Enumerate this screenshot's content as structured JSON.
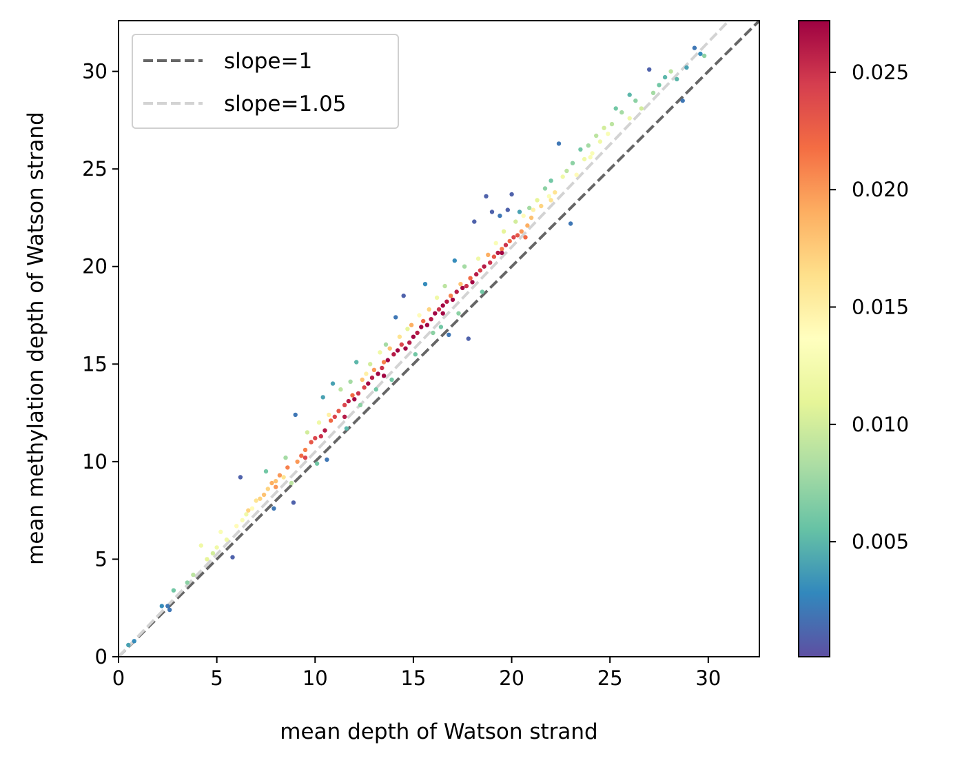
{
  "chart_data": {
    "type": "scatter",
    "title": "",
    "xlabel": "mean depth of Watson strand",
    "ylabel": "mean methylation depth of Watson strand",
    "xlim": [
      0,
      32.6
    ],
    "ylim": [
      0,
      32.6
    ],
    "xticks": [
      "0",
      "5",
      "10",
      "15",
      "20",
      "25",
      "30"
    ],
    "yticks": [
      "0",
      "5",
      "10",
      "15",
      "20",
      "25",
      "30"
    ],
    "grid": false,
    "legend_position": "top-left",
    "lines": [
      {
        "name": "slope=1",
        "slope": 1,
        "color": "#666666",
        "dash": "dashed"
      },
      {
        "name": "slope=1.05",
        "slope": 1.05,
        "color": "#d3d3d3",
        "dash": "dashed"
      }
    ],
    "colorbar": {
      "colormap": "Spectral_r",
      "range": [
        0.0001,
        0.0272
      ],
      "ticks": [
        "0.005",
        "0.010",
        "0.015",
        "0.020",
        "0.025"
      ],
      "tick_values": [
        0.005,
        0.01,
        0.015,
        0.02,
        0.025
      ]
    },
    "points": [
      [
        0.5,
        0.6,
        0.004
      ],
      [
        0.8,
        0.8,
        0.003
      ],
      [
        2.2,
        2.6,
        0.003
      ],
      [
        2.5,
        2.6,
        0.002
      ],
      [
        2.6,
        2.4,
        0.002
      ],
      [
        2.8,
        3.4,
        0.006
      ],
      [
        3.5,
        3.8,
        0.007
      ],
      [
        3.8,
        4.2,
        0.009
      ],
      [
        4.2,
        5.7,
        0.012
      ],
      [
        4.5,
        5.0,
        0.011
      ],
      [
        4.8,
        5.3,
        0.01
      ],
      [
        5.0,
        5.6,
        0.012
      ],
      [
        5.2,
        6.4,
        0.013
      ],
      [
        5.5,
        6.0,
        0.012
      ],
      [
        5.8,
        5.1,
        0.001
      ],
      [
        6.0,
        6.7,
        0.014
      ],
      [
        6.2,
        9.2,
        0.001
      ],
      [
        6.3,
        7.0,
        0.013
      ],
      [
        6.5,
        7.3,
        0.012
      ],
      [
        6.8,
        7.6,
        0.014
      ],
      [
        7.0,
        8.0,
        0.016
      ],
      [
        7.2,
        8.1,
        0.017
      ],
      [
        7.4,
        8.3,
        0.018
      ],
      [
        7.5,
        9.5,
        0.006
      ],
      [
        7.6,
        8.6,
        0.017
      ],
      [
        7.8,
        8.9,
        0.019
      ],
      [
        7.9,
        7.6,
        0.002
      ],
      [
        8.0,
        9.0,
        0.018
      ],
      [
        8.2,
        9.3,
        0.02
      ],
      [
        8.4,
        9.2,
        0.016
      ],
      [
        8.5,
        10.2,
        0.008
      ],
      [
        8.6,
        9.7,
        0.021
      ],
      [
        8.8,
        8.9,
        0.009
      ],
      [
        8.9,
        7.9,
        0.001
      ],
      [
        9.0,
        12.4,
        0.002
      ],
      [
        9.1,
        10.0,
        0.02
      ],
      [
        9.3,
        10.3,
        0.022
      ],
      [
        9.5,
        10.6,
        0.021
      ],
      [
        9.6,
        11.5,
        0.01
      ],
      [
        9.8,
        11.0,
        0.023
      ],
      [
        10.0,
        11.2,
        0.024
      ],
      [
        10.1,
        9.9,
        0.006
      ],
      [
        10.2,
        12.0,
        0.012
      ],
      [
        10.3,
        11.3,
        0.025
      ],
      [
        10.4,
        13.3,
        0.004
      ],
      [
        10.5,
        11.6,
        0.026
      ],
      [
        10.6,
        10.1,
        0.002
      ],
      [
        10.7,
        12.4,
        0.015
      ],
      [
        10.8,
        12.1,
        0.022
      ],
      [
        10.9,
        14.0,
        0.004
      ],
      [
        11.0,
        12.3,
        0.024
      ],
      [
        11.2,
        12.6,
        0.023
      ],
      [
        11.3,
        13.7,
        0.009
      ],
      [
        11.5,
        12.9,
        0.024
      ],
      [
        11.6,
        11.7,
        0.005
      ],
      [
        11.7,
        13.1,
        0.026
      ],
      [
        11.8,
        14.1,
        0.008
      ],
      [
        11.9,
        13.4,
        0.022
      ],
      [
        12.0,
        13.2,
        0.027
      ],
      [
        12.1,
        15.1,
        0.005
      ],
      [
        12.2,
        13.5,
        0.025
      ],
      [
        12.3,
        12.9,
        0.007
      ],
      [
        12.4,
        14.2,
        0.018
      ],
      [
        12.5,
        13.8,
        0.024
      ],
      [
        12.6,
        14.5,
        0.015
      ],
      [
        12.7,
        14.0,
        0.027
      ],
      [
        12.8,
        15.0,
        0.01
      ],
      [
        12.9,
        14.3,
        0.026
      ],
      [
        13.0,
        14.7,
        0.02
      ],
      [
        13.1,
        13.7,
        0.006
      ],
      [
        13.2,
        14.5,
        0.027
      ],
      [
        13.3,
        15.6,
        0.012
      ],
      [
        13.4,
        14.8,
        0.025
      ],
      [
        13.5,
        15.1,
        0.021
      ],
      [
        13.6,
        16.0,
        0.008
      ],
      [
        13.7,
        15.2,
        0.027
      ],
      [
        13.8,
        15.8,
        0.018
      ],
      [
        13.9,
        14.2,
        0.006
      ],
      [
        14.0,
        15.5,
        0.026
      ],
      [
        14.1,
        17.4,
        0.002
      ],
      [
        14.2,
        15.7,
        0.027
      ],
      [
        14.3,
        16.4,
        0.016
      ],
      [
        14.4,
        16.0,
        0.024
      ],
      [
        14.5,
        18.5,
        0.001
      ],
      [
        14.6,
        15.8,
        0.027
      ],
      [
        14.7,
        16.8,
        0.011
      ],
      [
        14.8,
        16.1,
        0.026
      ],
      [
        14.9,
        17.0,
        0.019
      ],
      [
        15.0,
        16.4,
        0.027
      ],
      [
        15.1,
        15.5,
        0.006
      ],
      [
        15.2,
        16.6,
        0.026
      ],
      [
        15.3,
        17.5,
        0.014
      ],
      [
        15.4,
        16.9,
        0.027
      ],
      [
        15.5,
        17.2,
        0.022
      ],
      [
        15.6,
        19.1,
        0.003
      ],
      [
        15.7,
        17.0,
        0.027
      ],
      [
        15.8,
        17.8,
        0.017
      ],
      [
        15.9,
        17.3,
        0.026
      ],
      [
        16.0,
        16.6,
        0.007
      ],
      [
        16.1,
        17.6,
        0.027
      ],
      [
        16.2,
        18.4,
        0.012
      ],
      [
        16.3,
        17.8,
        0.025
      ],
      [
        16.4,
        16.9,
        0.006
      ],
      [
        16.5,
        18.0,
        0.027
      ],
      [
        16.6,
        19.0,
        0.009
      ],
      [
        16.7,
        18.2,
        0.026
      ],
      [
        16.8,
        16.5,
        0.002
      ],
      [
        16.9,
        18.5,
        0.021
      ],
      [
        17.0,
        18.3,
        0.027
      ],
      [
        17.1,
        20.3,
        0.003
      ],
      [
        17.2,
        18.7,
        0.026
      ],
      [
        17.3,
        17.6,
        0.007
      ],
      [
        17.4,
        19.1,
        0.018
      ],
      [
        17.5,
        18.9,
        0.027
      ],
      [
        17.6,
        20.0,
        0.008
      ],
      [
        17.7,
        19.0,
        0.025
      ],
      [
        17.8,
        16.3,
        0.001
      ],
      [
        17.9,
        19.4,
        0.022
      ],
      [
        18.0,
        19.2,
        0.027
      ],
      [
        18.1,
        22.3,
        0.001
      ],
      [
        18.2,
        19.6,
        0.026
      ],
      [
        18.3,
        20.4,
        0.012
      ],
      [
        18.4,
        19.8,
        0.024
      ],
      [
        18.5,
        18.7,
        0.006
      ],
      [
        18.6,
        20.0,
        0.026
      ],
      [
        18.7,
        23.6,
        0.001
      ],
      [
        18.8,
        20.6,
        0.019
      ],
      [
        18.9,
        20.2,
        0.025
      ],
      [
        19.0,
        22.8,
        0.001
      ],
      [
        19.1,
        20.5,
        0.023
      ],
      [
        19.2,
        21.2,
        0.013
      ],
      [
        19.3,
        20.7,
        0.026
      ],
      [
        19.4,
        22.6,
        0.002
      ],
      [
        19.5,
        20.9,
        0.021
      ],
      [
        19.6,
        21.8,
        0.011
      ],
      [
        19.7,
        21.1,
        0.025
      ],
      [
        19.8,
        22.9,
        0.001
      ],
      [
        19.9,
        21.3,
        0.022
      ],
      [
        20.0,
        23.7,
        0.001
      ],
      [
        20.1,
        21.5,
        0.024
      ],
      [
        20.2,
        22.3,
        0.01
      ],
      [
        20.3,
        21.6,
        0.023
      ],
      [
        20.4,
        22.8,
        0.004
      ],
      [
        20.5,
        21.8,
        0.02
      ],
      [
        20.6,
        22.6,
        0.014
      ],
      [
        20.7,
        21.5,
        0.022
      ],
      [
        20.8,
        22.1,
        0.019
      ],
      [
        20.9,
        23.0,
        0.008
      ],
      [
        21.0,
        22.5,
        0.018
      ],
      [
        21.1,
        22.9,
        0.015
      ],
      [
        21.3,
        23.4,
        0.011
      ],
      [
        21.5,
        23.1,
        0.017
      ],
      [
        21.7,
        24.0,
        0.007
      ],
      [
        21.9,
        23.6,
        0.013
      ],
      [
        22.0,
        24.4,
        0.006
      ],
      [
        22.2,
        23.8,
        0.016
      ],
      [
        22.4,
        26.3,
        0.002
      ],
      [
        22.6,
        24.6,
        0.012
      ],
      [
        22.8,
        24.9,
        0.009
      ],
      [
        23.0,
        22.2,
        0.002
      ],
      [
        23.1,
        25.3,
        0.007
      ],
      [
        23.3,
        24.7,
        0.014
      ],
      [
        23.5,
        26.0,
        0.006
      ],
      [
        23.7,
        25.5,
        0.012
      ],
      [
        23.9,
        26.2,
        0.008
      ],
      [
        24.1,
        25.8,
        0.013
      ],
      [
        24.3,
        26.7,
        0.009
      ],
      [
        24.5,
        26.4,
        0.012
      ],
      [
        24.7,
        27.1,
        0.01
      ],
      [
        24.9,
        26.8,
        0.013
      ],
      [
        25.1,
        27.3,
        0.009
      ],
      [
        25.3,
        28.1,
        0.006
      ],
      [
        25.6,
        27.9,
        0.008
      ],
      [
        26.0,
        28.8,
        0.005
      ],
      [
        26.3,
        28.5,
        0.007
      ],
      [
        26.6,
        28.1,
        0.01
      ],
      [
        27.0,
        30.1,
        0.001
      ],
      [
        27.2,
        28.9,
        0.008
      ],
      [
        27.5,
        29.3,
        0.006
      ],
      [
        27.8,
        29.7,
        0.005
      ],
      [
        28.1,
        30.0,
        0.009
      ],
      [
        28.4,
        29.6,
        0.005
      ],
      [
        28.7,
        28.5,
        0.002
      ],
      [
        28.9,
        30.2,
        0.004
      ],
      [
        29.3,
        31.2,
        0.002
      ],
      [
        29.6,
        30.9,
        0.003
      ],
      [
        29.8,
        30.8,
        0.007
      ],
      [
        19.5,
        20.7,
        0.027
      ],
      [
        16.5,
        17.6,
        0.027
      ],
      [
        13.5,
        14.4,
        0.027
      ],
      [
        11.5,
        12.3,
        0.026
      ],
      [
        9.5,
        10.2,
        0.024
      ],
      [
        8.0,
        8.7,
        0.02
      ],
      [
        6.6,
        7.5,
        0.017
      ],
      [
        22.0,
        23.4,
        0.016
      ],
      [
        24.0,
        25.6,
        0.013
      ],
      [
        26.0,
        27.6,
        0.012
      ]
    ]
  }
}
